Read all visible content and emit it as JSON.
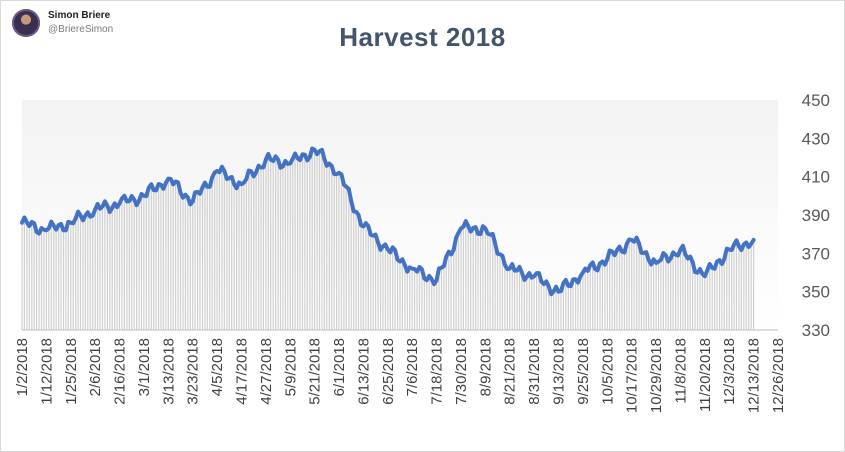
{
  "author": {
    "name": "Simon Briere",
    "handle": "@BriereSimon"
  },
  "chart_data": {
    "type": "area",
    "title": "Harvest  2018",
    "xlabel": "",
    "ylabel": "",
    "ylim": [
      330,
      450
    ],
    "yticks": [
      330,
      350,
      370,
      390,
      410,
      430,
      450
    ],
    "xtick_labels": [
      "1/2/2018",
      "1/12/2018",
      "1/25/2018",
      "2/6/2018",
      "2/16/2018",
      "3/1/2018",
      "3/13/2018",
      "3/23/2018",
      "4/5/2018",
      "4/17/2018",
      "4/27/2018",
      "5/9/2018",
      "5/21/2018",
      "6/1/2018",
      "6/13/2018",
      "6/25/2018",
      "7/6/2018",
      "7/18/2018",
      "7/30/2018",
      "8/9/2018",
      "8/21/2018",
      "8/31/2018",
      "9/13/2018",
      "9/25/2018",
      "10/5/2018",
      "10/17/2018",
      "10/29/2018",
      "11/8/2018",
      "11/20/2018",
      "12/3/2018",
      "12/13/2018",
      "12/26/2018"
    ],
    "grid": false,
    "colors": {
      "line": "#4472c4",
      "bars": "#d0d0d0",
      "background_top": "#f5f5f5"
    },
    "series": [
      {
        "x": [
          "1/2/2018",
          "1/12/2018",
          "1/25/2018",
          "2/6/2018",
          "2/16/2018",
          "3/1/2018",
          "3/13/2018",
          "3/23/2018",
          "4/5/2018",
          "4/17/2018",
          "4/27/2018",
          "5/9/2018",
          "5/21/2018",
          "6/1/2018",
          "6/13/2018",
          "6/25/2018",
          "7/6/2018",
          "7/18/2018",
          "7/30/2018",
          "8/9/2018",
          "8/21/2018",
          "8/31/2018",
          "9/13/2018",
          "9/25/2018",
          "10/5/2018",
          "10/17/2018",
          "10/29/2018",
          "11/8/2018",
          "11/20/2018",
          "12/3/2018",
          "12/13/2018"
        ],
        "values": [
          386,
          382,
          386,
          393,
          396,
          400,
          409,
          397,
          413,
          406,
          419,
          417,
          424,
          412,
          384,
          372,
          362,
          356,
          383,
          383,
          362,
          358,
          350,
          360,
          367,
          377,
          365,
          372,
          358,
          372,
          377
        ]
      }
    ]
  }
}
